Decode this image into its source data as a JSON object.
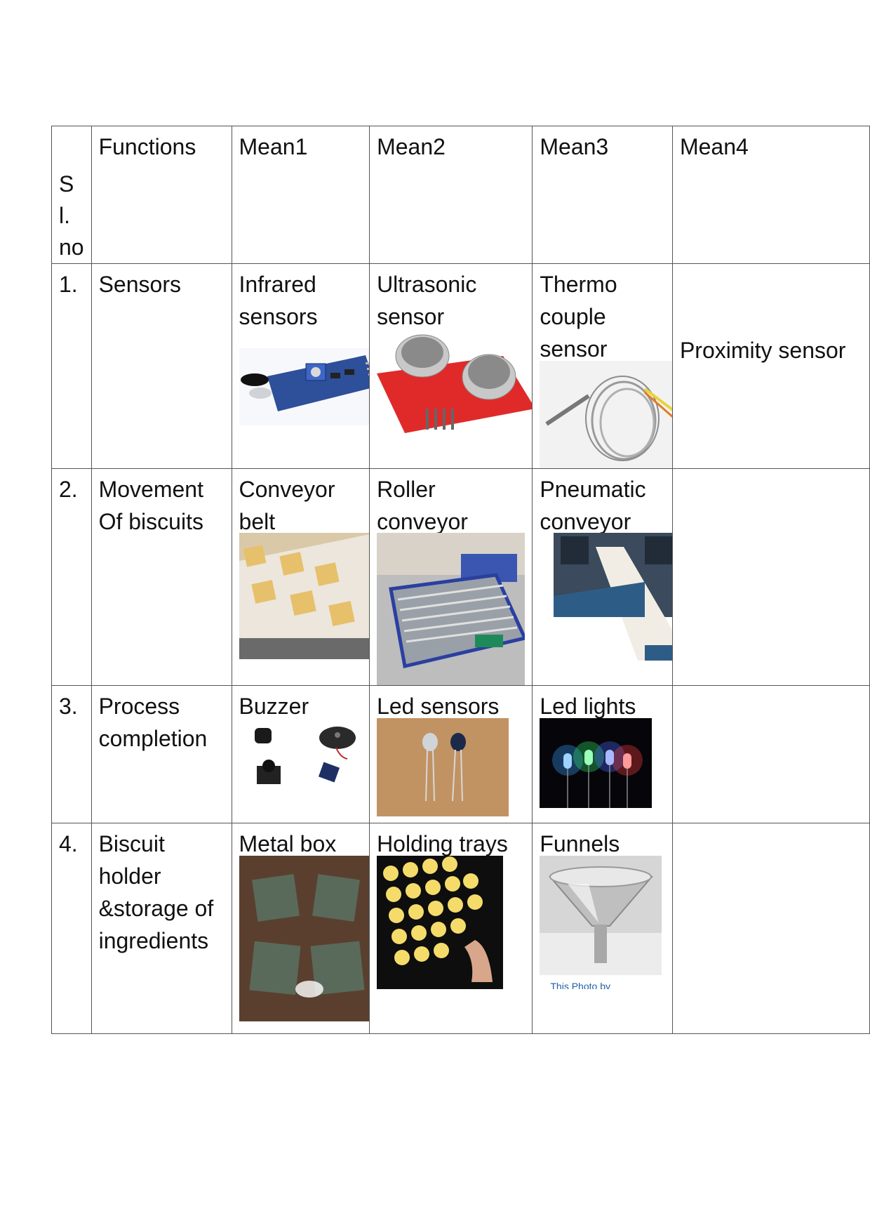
{
  "table": {
    "headers": {
      "slno": "Sl. no",
      "functions": "Functions",
      "mean1": "Mean1",
      "mean2": "Mean2",
      "mean3": "Mean3",
      "mean4": "Mean4"
    },
    "rows": [
      {
        "no": "1.",
        "function": "Sensors",
        "mean1": "Infrared sensors",
        "mean2": "Ultrasonic sensor",
        "mean3": "Thermo couple sensor",
        "mean4": "Proximity sensor"
      },
      {
        "no": "2.",
        "function": "Movement Of biscuits",
        "mean1": "Conveyor belt",
        "mean2": "Roller conveyor",
        "mean3": "Pneumatic conveyor",
        "mean4": ""
      },
      {
        "no": "3.",
        "function": "Process completion",
        "mean1": "Buzzer",
        "mean2": "Led sensors",
        "mean3": "Led lights",
        "mean4": ""
      },
      {
        "no": "4.",
        "function": "Biscuit holder &storage of ingredients",
        "mean1": "Metal box",
        "mean2": "Holding trays",
        "mean3": "Funnels",
        "mean4": "",
        "mean3_caption": "This Photo by"
      }
    ]
  }
}
